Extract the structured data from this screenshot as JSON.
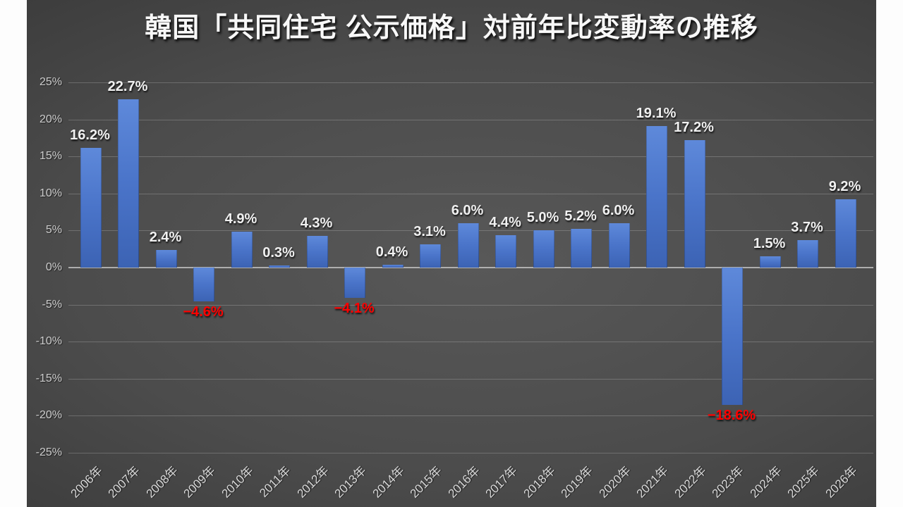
{
  "title": "韓国「共同住宅 公示価格」対前年比変動率の推移",
  "colors": {
    "page_margin": "#fdfdfd",
    "bar_top": "#5e89da",
    "bar_mid": "#4a74c9",
    "bar_bottom": "#3c63b4",
    "positive_label": "#f0f0f0",
    "negative_label": "#ff0000",
    "grid": "rgba(255,255,255,0.20)",
    "zero_line": "rgba(205,205,205,0.75)",
    "axis_text": "#cdcdcd",
    "x_axis_text": "#d8d8d8",
    "title_text": "#f8f8f8"
  },
  "chart_data": {
    "type": "bar",
    "title": "韓国「共同住宅 公示価格」対前年比変動率の推移",
    "categories": [
      "2006年",
      "2007年",
      "2008年",
      "2009年",
      "2010年",
      "2011年",
      "2012年",
      "2013年",
      "2014年",
      "2015年",
      "2016年",
      "2017年",
      "2018年",
      "2019年",
      "2020年",
      "2021年",
      "2022年",
      "2023年",
      "2024年",
      "2025年",
      "2026年"
    ],
    "values": [
      16.2,
      22.7,
      2.4,
      -4.6,
      4.9,
      0.3,
      4.3,
      -4.1,
      0.4,
      3.1,
      6.0,
      4.4,
      5.0,
      5.2,
      6.0,
      19.1,
      17.2,
      -18.6,
      1.5,
      3.7,
      9.2
    ],
    "labels": [
      "16.2%",
      "22.7%",
      "2.4%",
      "−4.6%",
      "4.9%",
      "0.3%",
      "4.3%",
      "−4.1%",
      "0.4%",
      "3.1%",
      "6.0%",
      "4.4%",
      "5.0%",
      "5.2%",
      "6.0%",
      "19.1%",
      "17.2%",
      "−18.6%",
      "1.5%",
      "3.7%",
      "9.2%"
    ],
    "xlabel": "",
    "ylabel": "",
    "ylim": [
      -25,
      25
    ],
    "y_ticks": [
      25,
      20,
      15,
      10,
      5,
      0,
      -5,
      -10,
      -15,
      -20,
      -25
    ],
    "y_tick_labels": [
      "25%",
      "20%",
      "15%",
      "10%",
      "5%",
      "0%",
      "-5%",
      "-10%",
      "-15%",
      "-20%",
      "-25%"
    ],
    "grid": true,
    "legend": "none"
  }
}
